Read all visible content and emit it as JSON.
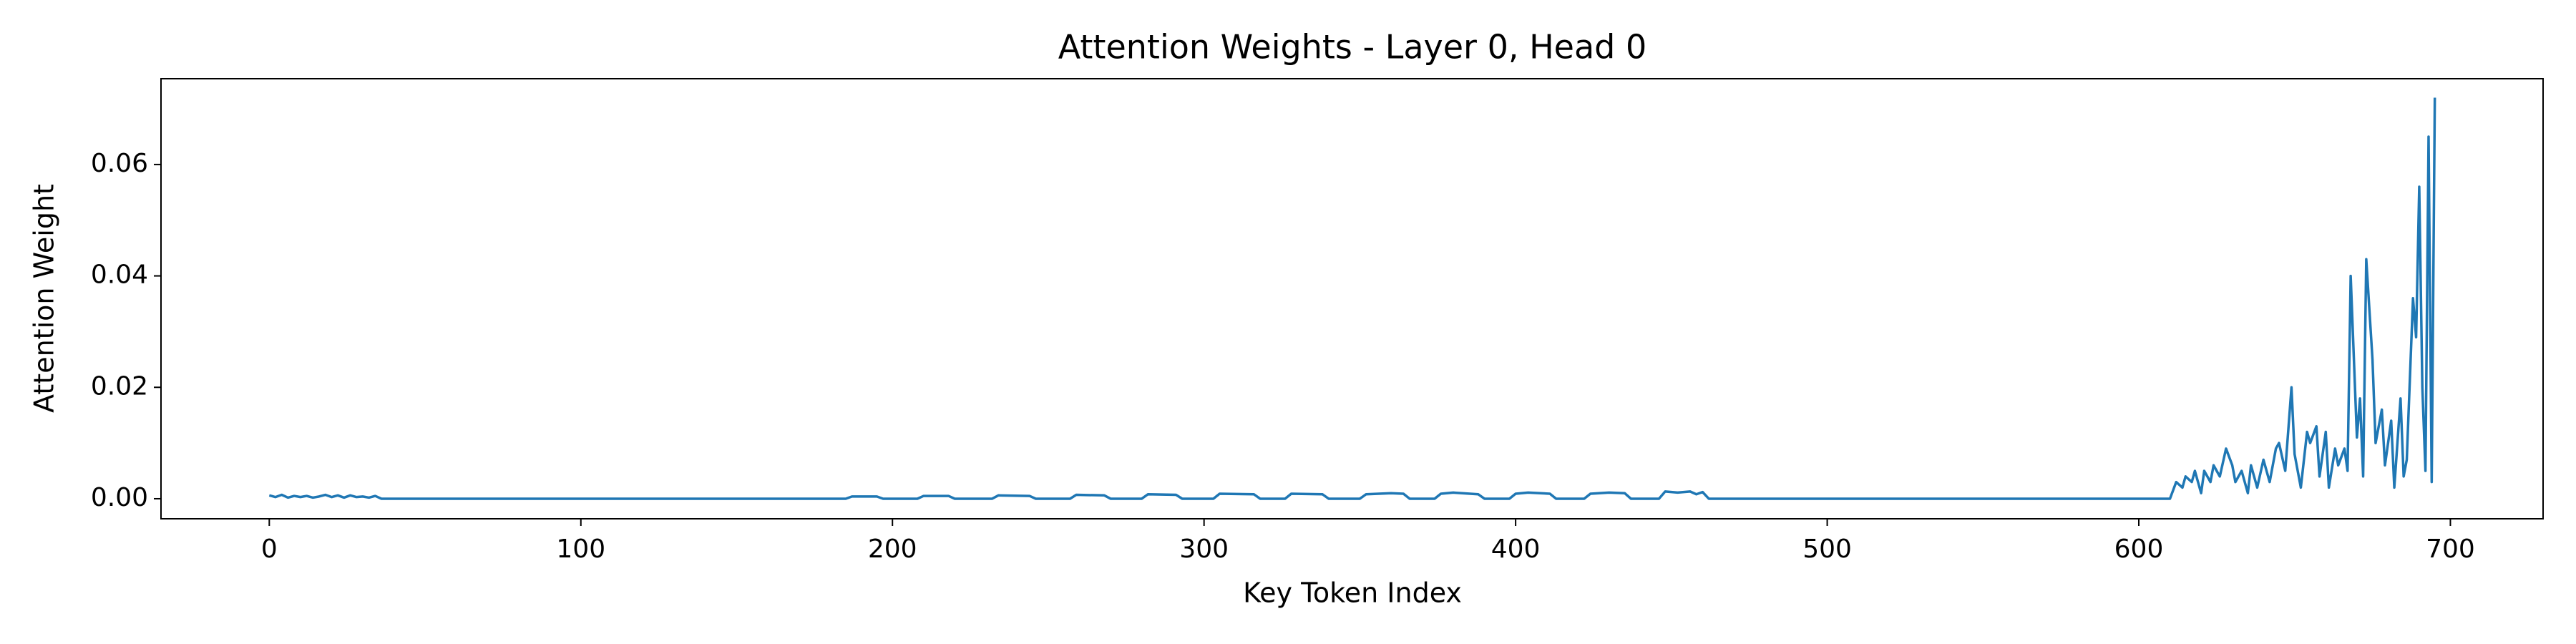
{
  "chart_data": {
    "type": "line",
    "title": "Attention Weights - Layer 0, Head 0",
    "x_label": "Key Token Index",
    "y_label": "Attention Weight",
    "color": "#1f77b4",
    "grid": false,
    "xlim": [
      -34.75,
      729.75
    ],
    "ylim": [
      -0.0036,
      0.0754
    ],
    "xticks": [
      0,
      100,
      200,
      300,
      400,
      500,
      600,
      700
    ],
    "yticks": [
      {
        "value": 0,
        "label": "0.00"
      },
      {
        "value": 0.02,
        "label": "0.02"
      },
      {
        "value": 0.04,
        "label": "0.04"
      },
      {
        "value": 0.06,
        "label": "0.06"
      }
    ],
    "x": [
      0,
      2,
      4,
      6,
      8,
      10,
      12,
      14,
      16,
      18,
      20,
      22,
      24,
      26,
      28,
      30,
      32,
      34,
      36,
      185,
      187,
      195,
      197,
      208,
      210,
      218,
      220,
      232,
      234,
      244,
      246,
      257,
      259,
      268,
      270,
      280,
      282,
      291,
      293,
      303,
      305,
      316,
      318,
      326,
      328,
      338,
      340,
      350,
      352,
      360,
      364,
      366,
      374,
      376,
      380,
      388,
      390,
      398,
      400,
      404,
      411,
      413,
      422,
      424,
      430,
      435,
      437,
      446,
      448,
      452,
      456,
      458,
      460,
      462,
      610,
      612,
      614,
      615,
      617,
      618,
      620,
      621,
      623,
      624,
      626,
      628,
      630,
      631,
      633,
      635,
      636,
      638,
      640,
      642,
      644,
      645,
      647,
      649,
      650,
      652,
      654,
      655,
      657,
      658,
      660,
      661,
      663,
      664,
      666,
      667,
      668,
      670,
      671,
      672,
      673,
      675,
      676,
      678,
      679,
      681,
      682,
      684,
      685,
      686,
      688,
      689,
      690,
      691,
      692,
      693,
      694,
      695
    ],
    "values": [
      0.0006,
      0.0003,
      0.0007,
      0.0002,
      0.0005,
      0.0003,
      0.0005,
      0.0002,
      0.0004,
      0.0007,
      0.0003,
      0.0006,
      0.0002,
      0.0006,
      0.0003,
      0.0004,
      0.0002,
      0.0005,
      0,
      0,
      0.0004,
      0.0004,
      0,
      0,
      0.0005,
      0.0005,
      0,
      0,
      0.0006,
      0.0005,
      0,
      0,
      0.0007,
      0.0006,
      0,
      0,
      0.0008,
      0.0007,
      0,
      0,
      0.0009,
      0.0008,
      0,
      0,
      0.0009,
      0.0008,
      0,
      0,
      0.0008,
      0.001,
      0.0009,
      0,
      0,
      0.0009,
      0.0011,
      0.0008,
      0,
      0,
      0.0009,
      0.0011,
      0.0009,
      0,
      0,
      0.0009,
      0.0011,
      0.001,
      0,
      0,
      0.0013,
      0.0011,
      0.0013,
      0.0008,
      0.0012,
      0,
      0,
      0.003,
      0.002,
      0.004,
      0.003,
      0.005,
      0.001,
      0.005,
      0.003,
      0.006,
      0.004,
      0.009,
      0.006,
      0.003,
      0.005,
      0.001,
      0.006,
      0.002,
      0.007,
      0.003,
      0.009,
      0.01,
      0.005,
      0.02,
      0.008,
      0.002,
      0.012,
      0.01,
      0.013,
      0.004,
      0.012,
      0.002,
      0.009,
      0.006,
      0.009,
      0.005,
      0.04,
      0.011,
      0.018,
      0.004,
      0.043,
      0.025,
      0.01,
      0.016,
      0.006,
      0.014,
      0.002,
      0.018,
      0.004,
      0.007,
      0.036,
      0.029,
      0.056,
      0.02,
      0.005,
      0.065,
      0.003,
      0.072
    ]
  }
}
